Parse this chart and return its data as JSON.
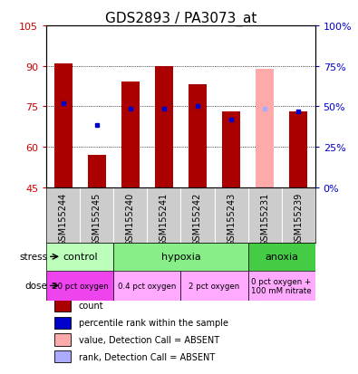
{
  "title": "GDS2893 / PA3073_at",
  "samples": [
    "GSM155244",
    "GSM155245",
    "GSM155240",
    "GSM155241",
    "GSM155242",
    "GSM155243",
    "GSM155231",
    "GSM155239"
  ],
  "count_values": [
    91,
    57,
    84,
    90,
    83,
    73,
    null,
    73
  ],
  "count_absent_values": [
    null,
    null,
    null,
    null,
    null,
    null,
    89,
    null
  ],
  "rank_values": [
    76,
    68,
    74,
    74,
    75,
    70,
    null,
    73
  ],
  "rank_absent_values": [
    null,
    null,
    null,
    null,
    null,
    null,
    74,
    null
  ],
  "ylim": [
    45,
    105
  ],
  "y2lim": [
    0,
    100
  ],
  "yticks": [
    45,
    60,
    75,
    90,
    105
  ],
  "y2ticks": [
    0,
    25,
    50,
    75,
    100
  ],
  "grid_lines": [
    60,
    75,
    90
  ],
  "bar_color": "#aa0000",
  "bar_absent_color": "#ffaaaa",
  "rank_color": "#0000cc",
  "rank_absent_color": "#aaaaff",
  "bg_color": "#ffffff",
  "stress_groups": [
    {
      "label": "control",
      "start": 0,
      "end": 2,
      "color": "#bbffbb"
    },
    {
      "label": "hypoxia",
      "start": 2,
      "end": 6,
      "color": "#88ee88"
    },
    {
      "label": "anoxia",
      "start": 6,
      "end": 8,
      "color": "#44cc44"
    }
  ],
  "dose_groups": [
    {
      "label": "20 pct oxygen",
      "start": 0,
      "end": 2,
      "color": "#ee44ee"
    },
    {
      "label": "0.4 pct oxygen",
      "start": 2,
      "end": 4,
      "color": "#ffaaff"
    },
    {
      "label": "2 pct oxygen",
      "start": 4,
      "end": 6,
      "color": "#ffaaff"
    },
    {
      "label": "0 pct oxygen +\n100 mM nitrate",
      "start": 6,
      "end": 8,
      "color": "#ffaaff"
    }
  ],
  "legend_items": [
    {
      "color": "#aa0000",
      "label": "count"
    },
    {
      "color": "#0000cc",
      "label": "percentile rank within the sample"
    },
    {
      "color": "#ffaaaa",
      "label": "value, Detection Call = ABSENT"
    },
    {
      "color": "#aaaaff",
      "label": "rank, Detection Call = ABSENT"
    }
  ],
  "ylabel_left_color": "#cc0000",
  "ylabel_right_color": "#0000cc",
  "bar_width": 0.55,
  "tick_label_size": 7,
  "title_fontsize": 11,
  "n_samples": 8,
  "xlim_left": -0.5,
  "xlim_right": 7.5
}
